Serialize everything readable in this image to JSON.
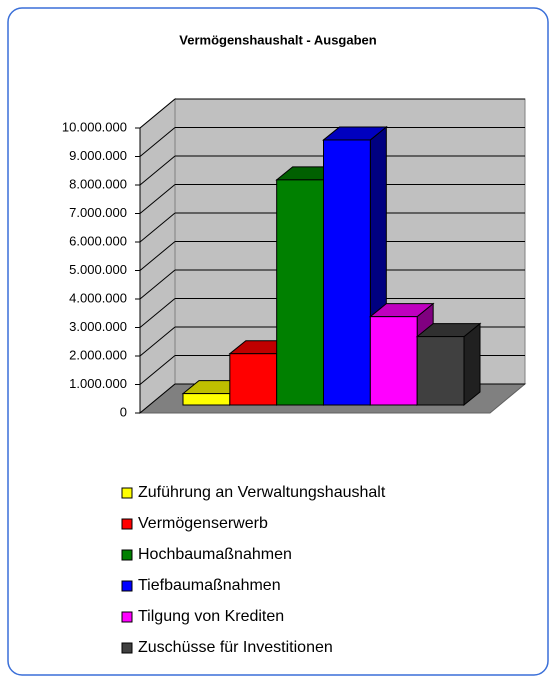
{
  "chart_data": {
    "type": "bar3d",
    "title": "Vermögenshaushalt - Ausgaben",
    "series": [
      {
        "name": "Zuführung an Verwaltungshaushalt",
        "color": "#ffff00",
        "values": [
          400000
        ]
      },
      {
        "name": "Vermögenserwerb",
        "color": "#ff0000",
        "values": [
          1800000
        ]
      },
      {
        "name": "Hochbaumaßnahmen",
        "color": "#008000",
        "values": [
          7900000
        ]
      },
      {
        "name": "Tiefbaumaßnahmen",
        "color": "#0000ff",
        "values": [
          9300000
        ]
      },
      {
        "name": "Tilgung von Krediten",
        "color": "#ff00ff",
        "values": [
          3100000
        ]
      },
      {
        "name": "Zuschüsse für Investitionen",
        "color": "#404040",
        "values": [
          2400000
        ]
      }
    ],
    "ylim": [
      0,
      10000000
    ],
    "yticks": [
      0,
      {
        "value": 1000000,
        "label": "1.000.000"
      },
      {
        "value": 2000000,
        "label": "2.000.000"
      },
      {
        "value": 3000000,
        "label": "3.000.000"
      },
      {
        "value": 4000000,
        "label": "4.000.000"
      },
      {
        "value": 5000000,
        "label": "5.000.000"
      },
      {
        "value": 6000000,
        "label": "6.000.000"
      },
      {
        "value": 7000000,
        "label": "7.000.000"
      },
      {
        "value": 8000000,
        "label": "8.000.000"
      },
      {
        "value": 9000000,
        "label": "9.000.000"
      },
      {
        "value": 10000000,
        "label": "10.000.000"
      }
    ],
    "grid": true
  }
}
